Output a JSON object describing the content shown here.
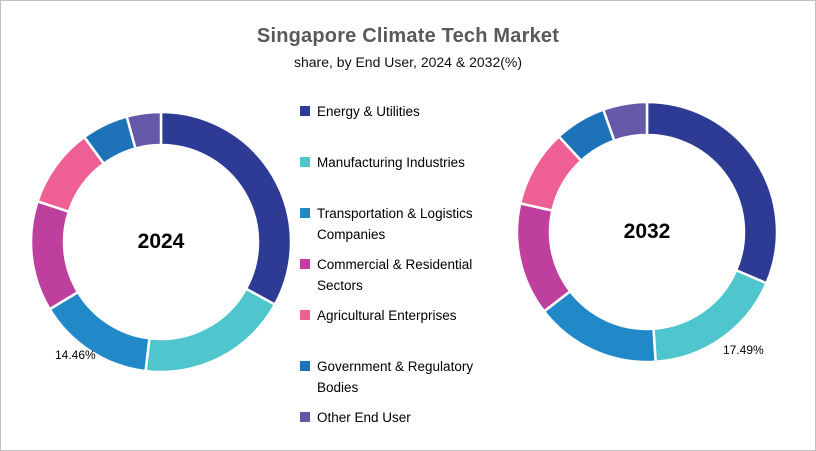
{
  "title": "Singapore Climate Tech Market",
  "subtitle": "share, by End User, 2024 & 2032(%)",
  "legend": {
    "position": "middle-between-donuts",
    "items": [
      {
        "label": "Energy & Utilities",
        "color": "#2E3B95"
      },
      {
        "label": "Manufacturing Industries",
        "color": "#4FC5CD"
      },
      {
        "label": "Transportation & Logistics Companies",
        "color": "#2289C9"
      },
      {
        "label": "Commercial & Residential Sectors",
        "color": "#BE3F9E"
      },
      {
        "label": "Agricultural Enterprises",
        "color": "#EE5F94"
      },
      {
        "label": "Government & Regulatory Bodies",
        "color": "#1D72B8"
      },
      {
        "label": "Other End User",
        "color": "#6459A8"
      }
    ]
  },
  "chart_data": [
    {
      "type": "pie",
      "subtype": "donut",
      "center_label": "2024",
      "start_angle_deg": 0,
      "direction": "clockwise",
      "categories": [
        "Energy & Utilities",
        "Manufacturing Industries",
        "Transportation & Logistics Companies",
        "Commercial & Residential Sectors",
        "Agricultural Enterprises",
        "Government & Regulatory Bodies",
        "Other End User"
      ],
      "values": [
        33.0,
        18.9,
        14.46,
        13.7,
        9.9,
        5.8,
        4.24
      ],
      "values_note": "only 14.46% labeled on chart; other values estimated from arc angles",
      "colors": [
        "#2E3B95",
        "#4FC5CD",
        "#2289C9",
        "#BE3F9E",
        "#EE5F94",
        "#1D72B8",
        "#6459A8"
      ],
      "data_labels": [
        {
          "category": "Transportation & Logistics Companies",
          "text": "14.46%"
        }
      ]
    },
    {
      "type": "pie",
      "subtype": "donut",
      "center_label": "2032",
      "start_angle_deg": 0,
      "direction": "clockwise",
      "categories": [
        "Energy & Utilities",
        "Manufacturing Industries",
        "Transportation & Logistics Companies",
        "Commercial & Residential Sectors",
        "Agricultural Enterprises",
        "Government & Regulatory Bodies",
        "Other End User"
      ],
      "values": [
        31.45,
        17.49,
        15.6,
        14.0,
        9.6,
        6.4,
        5.46
      ],
      "values_note": "only 17.49% labeled on chart; other values estimated from arc angles",
      "colors": [
        "#2E3B95",
        "#4FC5CD",
        "#2289C9",
        "#BE3F9E",
        "#EE5F94",
        "#1D72B8",
        "#6459A8"
      ],
      "data_labels": [
        {
          "category": "Manufacturing Industries",
          "text": "17.49%"
        }
      ]
    }
  ]
}
